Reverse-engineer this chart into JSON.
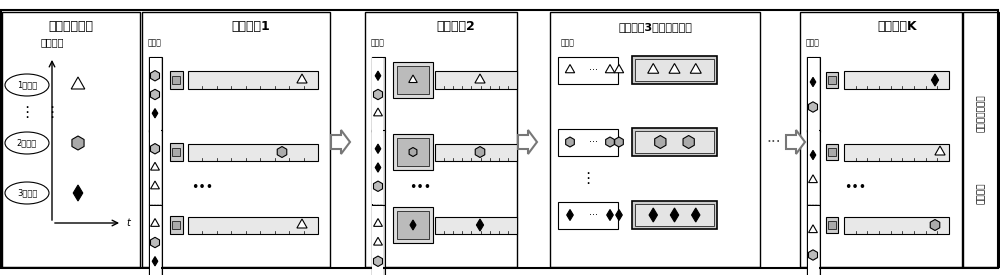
{
  "bg_color": "#ffffff",
  "border_color": "#000000",
  "section1_title": "工件随机到达",
  "section1_subtitle": "工件类型",
  "label1": "1类工件",
  "label2": "2类工件",
  "label3": "3类工件",
  "stage1_title": "加工阶段1",
  "stage2_title": "加工阶段2",
  "stage3_title": "加工阶段3（组批生产）",
  "stageK_title": "加工阶段K",
  "buffer_label": "缓冲区",
  "right_label1": "工件离开主系统",
  "right_label2": "加工完成",
  "font_size_title": 9,
  "font_size_label": 7,
  "font_size_small": 6
}
